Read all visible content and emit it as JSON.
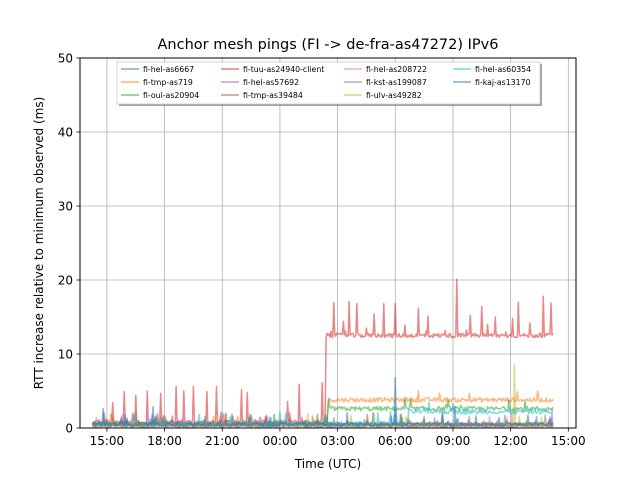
{
  "chart_data": {
    "type": "line",
    "title": "Anchor mesh pings (FI -> de-fra-as47272) IPv6",
    "xlabel": "Time (UTC)",
    "ylabel": "RTT increase relative to minimum observed (ms)",
    "xlim_hours": [
      13.6,
      39.4
    ],
    "ylim": [
      0,
      50
    ],
    "x_ticks": [
      {
        "h": 15,
        "label": "15:00"
      },
      {
        "h": 18,
        "label": "18:00"
      },
      {
        "h": 21,
        "label": "21:00"
      },
      {
        "h": 24,
        "label": "00:00"
      },
      {
        "h": 27,
        "label": "03:00"
      },
      {
        "h": 30,
        "label": "06:00"
      },
      {
        "h": 33,
        "label": "09:00"
      },
      {
        "h": 36,
        "label": "12:00"
      },
      {
        "h": 39,
        "label": "15:00"
      }
    ],
    "y_ticks": [
      0,
      10,
      20,
      30,
      40,
      50
    ],
    "grid": true,
    "legend_position": "top-center",
    "series": [
      {
        "name": "fi-hel-as6667",
        "color": "#1f77b4",
        "base": 0.4
      },
      {
        "name": "fi-tmp-as719",
        "color": "#ff7f0e",
        "base": 0.6,
        "shift_at": 26.5,
        "after": 3.8
      },
      {
        "name": "fi-oul-as20904",
        "color": "#2ca02c",
        "base": 0.5,
        "shift_at": 26.5,
        "after": 2.6
      },
      {
        "name": "fi-tuu-as24940-client",
        "color": "#d62728",
        "base": 0.8,
        "shift_at": 26.4,
        "after": 12.5,
        "spikes_before": [
          [
            14.2,
            6.2
          ],
          [
            15.3,
            3.4
          ],
          [
            15.9,
            4.9
          ],
          [
            16.5,
            4.4
          ],
          [
            17.1,
            5.0
          ],
          [
            17.8,
            4.7
          ],
          [
            18.6,
            5.6
          ],
          [
            19.0,
            5.0
          ],
          [
            19.5,
            5.6
          ],
          [
            20.2,
            4.9
          ],
          [
            20.7,
            5.6
          ],
          [
            22.0,
            5.2
          ],
          [
            22.3,
            4.8
          ],
          [
            24.4,
            3.6
          ],
          [
            25.0,
            5.9
          ],
          [
            26.2,
            6.1
          ]
        ],
        "spikes_after": [
          [
            26.8,
            16.9
          ],
          [
            27.3,
            14.4
          ],
          [
            27.6,
            17.1
          ],
          [
            28.0,
            16.8
          ],
          [
            28.5,
            13.5
          ],
          [
            28.9,
            15.4
          ],
          [
            29.4,
            16.8
          ],
          [
            30.0,
            16.8
          ],
          [
            30.5,
            13.9
          ],
          [
            31.2,
            16.2
          ],
          [
            31.7,
            15.1
          ],
          [
            32.6,
            13.2
          ],
          [
            33.2,
            20.1
          ],
          [
            33.9,
            15.2
          ],
          [
            34.5,
            16.4
          ],
          [
            35.2,
            15.0
          ],
          [
            36.1,
            14.8
          ],
          [
            36.4,
            17.0
          ],
          [
            37.0,
            14.2
          ],
          [
            37.7,
            17.8
          ],
          [
            38.1,
            16.9
          ]
        ]
      },
      {
        "name": "fi-hel-as57692",
        "color": "#9467bd",
        "base": 0.3
      },
      {
        "name": "fi-tmp-as39484",
        "color": "#8c564b",
        "base": 0.5
      },
      {
        "name": "fi-hel-as208722",
        "color": "#e377c2",
        "base": 0.4
      },
      {
        "name": "fi-kst-as199087",
        "color": "#7f7f7f",
        "base": 0.5
      },
      {
        "name": "fi-ulv-as49282",
        "color": "#bcbd22",
        "base": 0.4,
        "spikes_after": [
          [
            36.2,
            8.6
          ]
        ]
      },
      {
        "name": "fi-hel-as60354",
        "color": "#17becf",
        "base": 0.6,
        "shift_at": 30.7,
        "after": 2.2
      },
      {
        "name": "fi-kaj-as13170",
        "color": "#1f77b4",
        "base": 0.5,
        "spikes_before": [
          [
            14.8,
            2.6
          ],
          [
            17.4,
            2.9
          ]
        ],
        "spikes_after": [
          [
            30.0,
            6.8
          ],
          [
            33.1,
            2.9
          ]
        ]
      }
    ]
  }
}
